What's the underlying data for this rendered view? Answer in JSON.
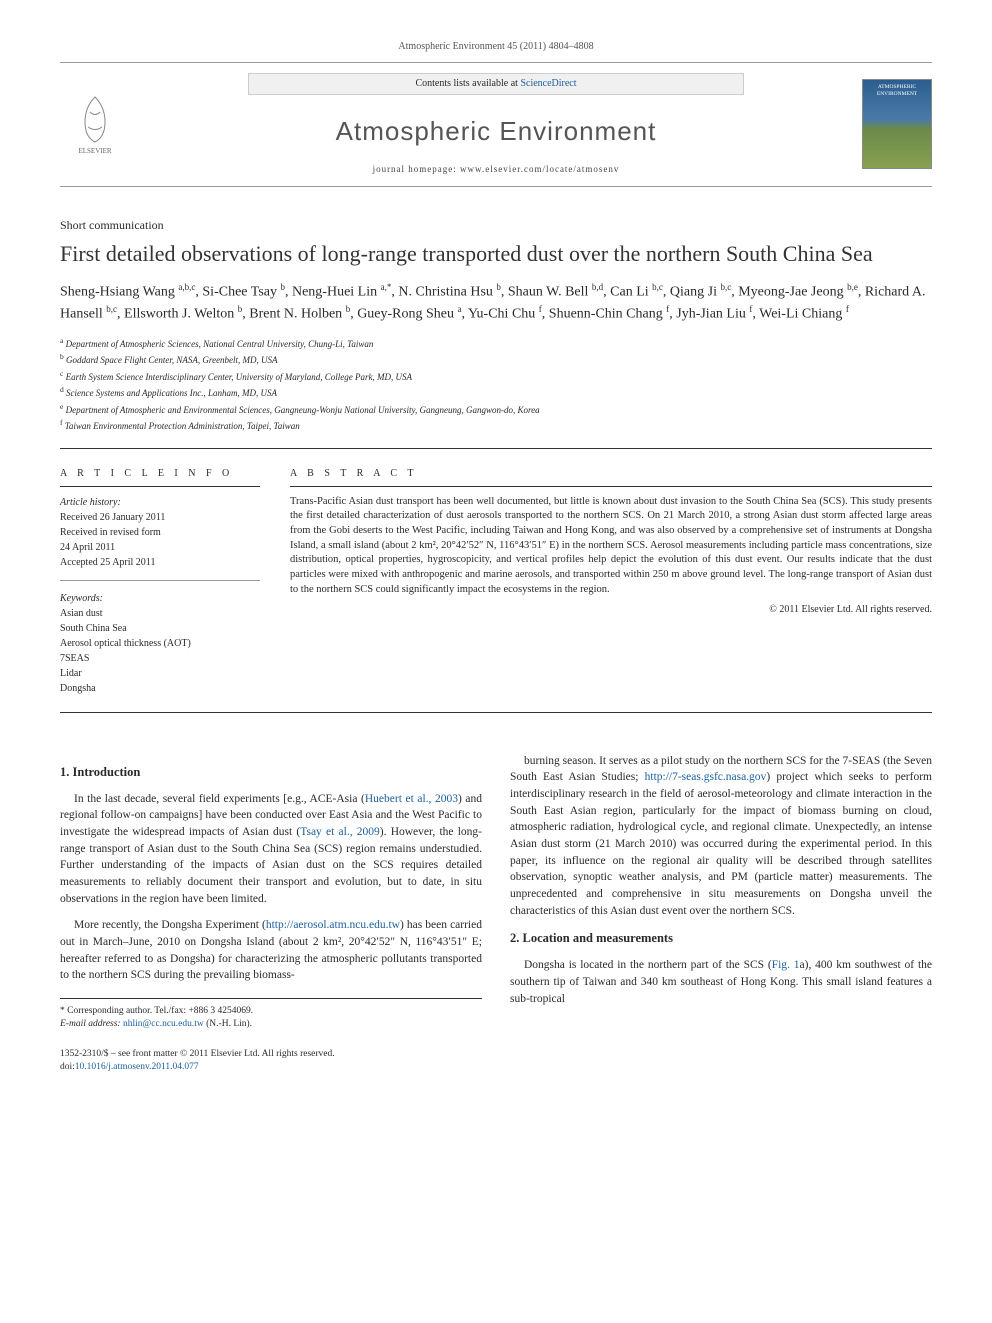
{
  "journal_ref": "Atmospheric Environment 45 (2011) 4804–4808",
  "header": {
    "contents_prefix": "Contents lists available at ",
    "contents_link": "ScienceDirect",
    "journal_name": "Atmospheric Environment",
    "homepage_prefix": "journal homepage: ",
    "homepage_url": "www.elsevier.com/locate/atmosenv",
    "publisher_label": "ELSEVIER"
  },
  "article_type": "Short communication",
  "title": "First detailed observations of long-range transported dust over the northern South China Sea",
  "authors_html": "Sheng-Hsiang Wang <span class='sup'>a,b,c</span>, Si-Chee Tsay <span class='sup'>b</span>, Neng-Huei Lin <span class='sup'>a,*</span>, N. Christina Hsu <span class='sup'>b</span>, Shaun W. Bell <span class='sup'>b,d</span>, Can Li <span class='sup'>b,c</span>, Qiang Ji <span class='sup'>b,c</span>, Myeong-Jae Jeong <span class='sup'>b,e</span>, Richard A. Hansell <span class='sup'>b,c</span>, Ellsworth J. Welton <span class='sup'>b</span>, Brent N. Holben <span class='sup'>b</span>, Guey-Rong Sheu <span class='sup'>a</span>, Yu-Chi Chu <span class='sup'>f</span>, Shuenn-Chin Chang <span class='sup'>f</span>, Jyh-Jian Liu <span class='sup'>f</span>, Wei-Li Chiang <span class='sup'>f</span>",
  "affiliations": [
    {
      "sup": "a",
      "text": "Department of Atmospheric Sciences, National Central University, Chung-Li, Taiwan"
    },
    {
      "sup": "b",
      "text": "Goddard Space Flight Center, NASA, Greenbelt, MD, USA"
    },
    {
      "sup": "c",
      "text": "Earth System Science Interdisciplinary Center, University of Maryland, College Park, MD, USA"
    },
    {
      "sup": "d",
      "text": "Science Systems and Applications Inc., Lanham, MD, USA"
    },
    {
      "sup": "e",
      "text": "Department of Atmospheric and Environmental Sciences, Gangneung-Wonju National University, Gangneung, Gangwon-do, Korea"
    },
    {
      "sup": "f",
      "text": "Taiwan Environmental Protection Administration, Taipei, Taiwan"
    }
  ],
  "article_info": {
    "heading": "A R T I C L E   I N F O",
    "history_label": "Article history:",
    "history": [
      "Received 26 January 2011",
      "Received in revised form",
      "24 April 2011",
      "Accepted 25 April 2011"
    ],
    "keywords_label": "Keywords:",
    "keywords": [
      "Asian dust",
      "South China Sea",
      "Aerosol optical thickness (AOT)",
      "7SEAS",
      "Lidar",
      "Dongsha"
    ]
  },
  "abstract": {
    "heading": "A B S T R A C T",
    "text": "Trans-Pacific Asian dust transport has been well documented, but little is known about dust invasion to the South China Sea (SCS). This study presents the first detailed characterization of dust aerosols transported to the northern SCS. On 21 March 2010, a strong Asian dust storm affected large areas from the Gobi deserts to the West Pacific, including Taiwan and Hong Kong, and was also observed by a comprehensive set of instruments at Dongsha Island, a small island (about 2 km², 20°42′52″ N, 116°43′51″ E) in the northern SCS. Aerosol measurements including particle mass concentrations, size distribution, optical properties, hygroscopicity, and vertical profiles help depict the evolution of this dust event. Our results indicate that the dust particles were mixed with anthropogenic and marine aerosols, and transported within 250 m above ground level. The long-range transport of Asian dust to the northern SCS could significantly impact the ecosystems in the region.",
    "copyright": "© 2011 Elsevier Ltd. All rights reserved."
  },
  "sections": {
    "intro_heading": "1.  Introduction",
    "intro_p1_a": "In the last decade, several field experiments [e.g., ACE-Asia (",
    "intro_p1_link1": "Huebert et al., 2003",
    "intro_p1_b": ") and regional follow-on campaigns] have been conducted over East Asia and the West Pacific to investigate the widespread impacts of Asian dust (",
    "intro_p1_link2": "Tsay et al., 2009",
    "intro_p1_c": "). However, the long-range transport of Asian dust to the South China Sea (SCS) region remains understudied. Further understanding of the impacts of Asian dust on the SCS requires detailed measurements to reliably document their transport and evolution, but to date, in situ observations in the region have been limited.",
    "intro_p2_a": "More recently, the Dongsha Experiment (",
    "intro_p2_link1": "http://aerosol.atm.ncu.edu.tw",
    "intro_p2_b": ") has been carried out in March–June, 2010 on Dongsha Island (about 2 km², 20°42′52″ N, 116°43′51″ E; hereafter referred to as Dongsha) for characterizing the atmospheric pollutants transported to the northern SCS during the prevailing biomass-",
    "intro_p3_a": "burning season. It serves as a pilot study on the northern SCS for the 7-SEAS (the Seven South East Asian Studies; ",
    "intro_p3_link1": "http://7-seas.gsfc.nasa.gov",
    "intro_p3_b": ") project which seeks to perform interdisciplinary research in the field of aerosol-meteorology and climate interaction in the South East Asian region, particularly for the impact of biomass burning on cloud, atmospheric radiation, hydrological cycle, and regional climate. Unexpectedly, an intense Asian dust storm (21 March 2010) was occurred during the experimental period. In this paper, its influence on the regional air quality will be described through satellites observation, synoptic weather analysis, and PM (particle matter) measurements. The unprecedented and comprehensive in situ measurements on Dongsha unveil the characteristics of this Asian dust event over the northern SCS.",
    "location_heading": "2.  Location and measurements",
    "location_p1_a": "Dongsha is located in the northern part of the SCS (",
    "location_p1_link1": "Fig. 1",
    "location_p1_b": "a), 400 km southwest of the southern tip of Taiwan and 340 km southeast of Hong Kong. This small island features a sub-tropical"
  },
  "footnote": {
    "corresp_label": "* Corresponding author. Tel./fax: +886 3 4254069.",
    "email_label": "E-mail address: ",
    "email": "nhlin@cc.ncu.edu.tw",
    "email_suffix": " (N.-H. Lin)."
  },
  "footer": {
    "issn_line": "1352-2310/$ – see front matter © 2011 Elsevier Ltd. All rights reserved.",
    "doi_prefix": "doi:",
    "doi": "10.1016/j.atmosenv.2011.04.077"
  },
  "colors": {
    "link": "#1a5f9e",
    "text": "#2a2a2a",
    "border": "#333333"
  }
}
